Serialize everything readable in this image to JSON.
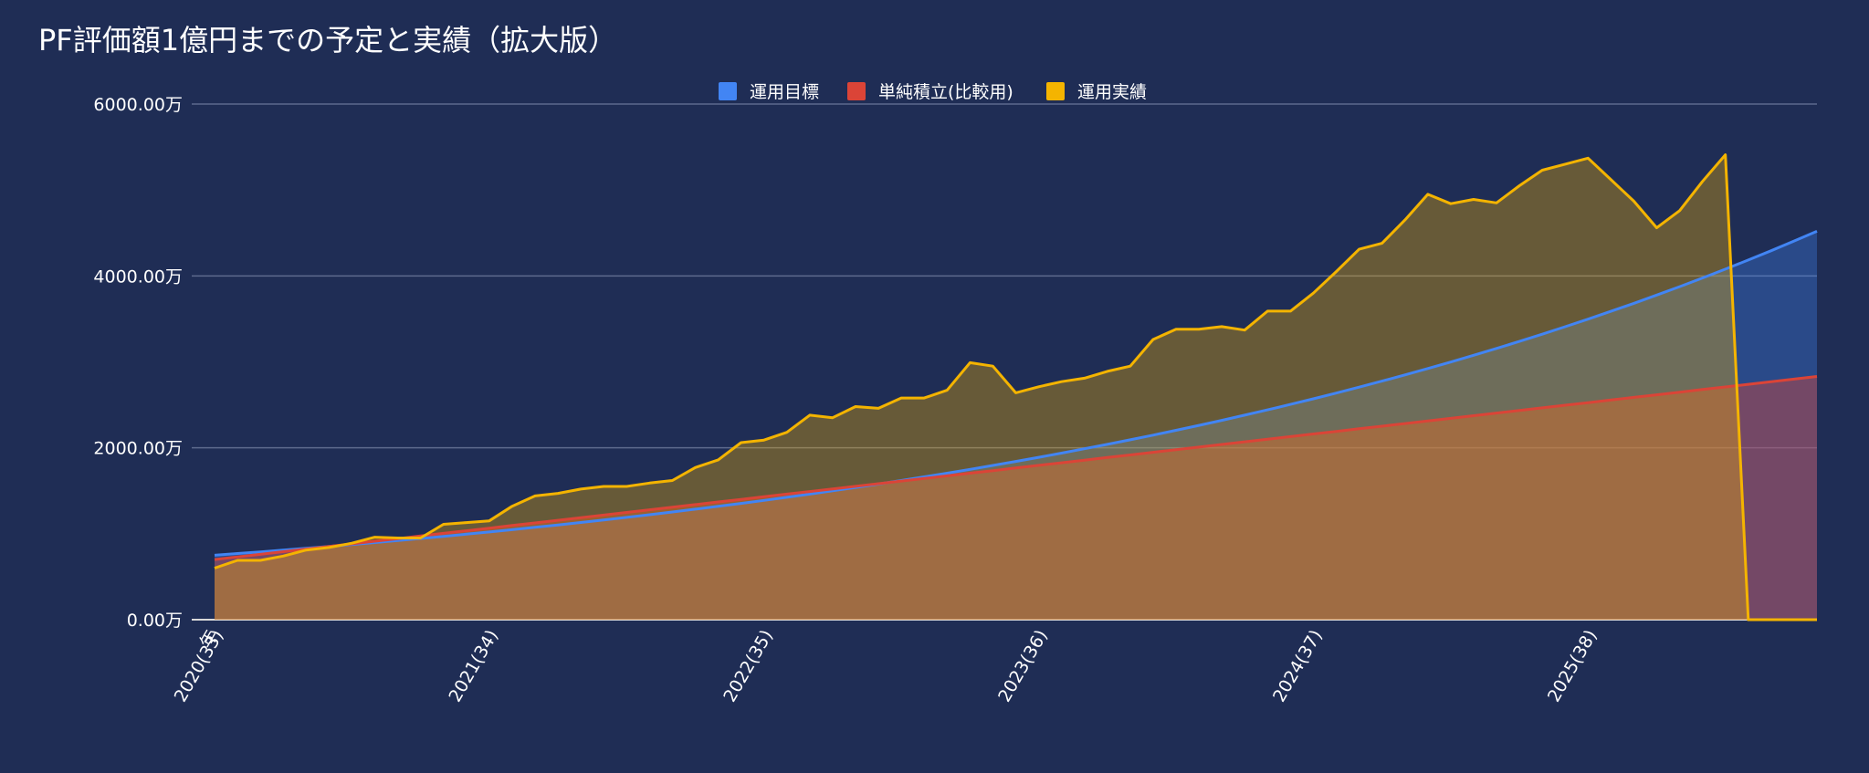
{
  "chart_data": {
    "type": "area",
    "title": "PF評価額1億円までの予定と実績（拡大版）",
    "xlabel": "",
    "ylabel": "",
    "ylim": [
      0,
      6000
    ],
    "y_unit": "万",
    "y_ticks": [
      0,
      2000,
      4000,
      6000
    ],
    "y_tick_labels": [
      "0.00万",
      "2000.00万",
      "4000.00万",
      "6000.00万"
    ],
    "x_tick_labels": [
      {
        "index": 0,
        "label": "2020(33)"
      },
      {
        "index": 12,
        "label": "2021(34)"
      },
      {
        "index": 24,
        "label": "2022(35)"
      },
      {
        "index": 36,
        "label": "2023(36)"
      },
      {
        "index": 48,
        "label": "2024(37)"
      },
      {
        "index": 60,
        "label": "2025(38)"
      }
    ],
    "x_axis_header": "年",
    "x_range_months": [
      0,
      70
    ],
    "grid": true,
    "legend_position": "top",
    "colors": {
      "background": "#1f2d55",
      "goal": "#4285f4",
      "simple": "#db4437",
      "actual": "#f4b400"
    },
    "series": [
      {
        "key": "goal",
        "name": "運用目標",
        "start": 750,
        "end": 4520,
        "months": 70,
        "shape": "compound"
      },
      {
        "key": "simple",
        "name": "単純積立(比較用)",
        "start": 700,
        "end": 2830,
        "months": 70,
        "shape": "linear"
      },
      {
        "key": "actual",
        "name": "運用実績",
        "values": [
          600,
          690,
          690,
          740,
          810,
          840,
          890,
          960,
          950,
          950,
          1110,
          1130,
          1150,
          1320,
          1440,
          1470,
          1520,
          1550,
          1550,
          1590,
          1620,
          1770,
          1860,
          2060,
          2090,
          2180,
          2380,
          2350,
          2480,
          2460,
          2580,
          2580,
          2670,
          2990,
          2950,
          2640,
          2710,
          2770,
          2810,
          2890,
          2950,
          3260,
          3380,
          3380,
          3410,
          3370,
          3590,
          3590,
          3800,
          4050,
          4310,
          4380,
          4650,
          4950,
          4840,
          4890,
          4850,
          5050,
          5230,
          5300,
          5370,
          5120,
          4870,
          4560,
          4760,
          5100,
          5410,
          0,
          0,
          0,
          0
        ]
      }
    ]
  }
}
